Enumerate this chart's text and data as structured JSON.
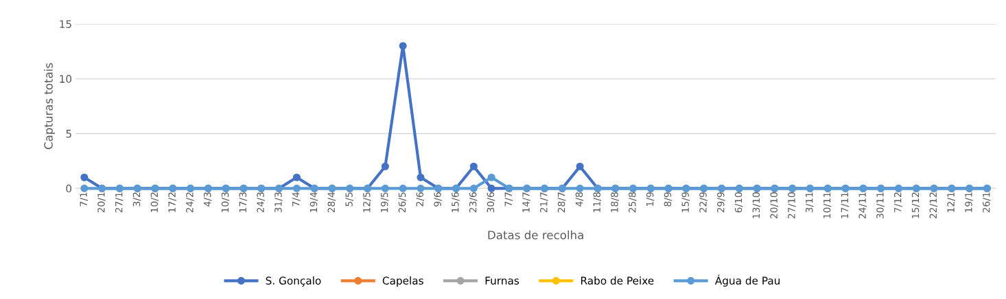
{
  "chart_data": {
    "type": "line",
    "xlabel": "Datas de recolha",
    "ylabel": "Capturas totais",
    "categories": [
      "7/1",
      "20/1",
      "27/1",
      "3/2",
      "10/2",
      "17/2",
      "24/2",
      "4/3",
      "10/3",
      "17/3",
      "24/3",
      "31/3",
      "7/4",
      "19/4",
      "28/4",
      "5/5",
      "12/5",
      "19/5",
      "26/5",
      "2/6",
      "9/6",
      "15/6",
      "23/6",
      "30/6",
      "7/7",
      "14/7",
      "21/7",
      "28/7",
      "4/8",
      "11/8",
      "18/8",
      "25/8",
      "1/9",
      "8/9",
      "15/9",
      "22/9",
      "29/9",
      "6/10",
      "13/10",
      "20/10",
      "27/10",
      "3/11",
      "10/11",
      "17/11",
      "24/11",
      "30/11",
      "7/12",
      "15/12",
      "22/12",
      "12/1",
      "19/1",
      "26/1"
    ],
    "series": [
      {
        "name": "S. Gonçalo",
        "color": "#4472c4",
        "values": [
          1,
          0,
          0,
          0,
          0,
          0,
          0,
          0,
          0,
          0,
          0,
          0,
          1,
          0,
          0,
          0,
          0,
          2,
          13,
          1,
          0,
          0,
          2,
          0,
          0,
          0,
          0,
          0,
          2,
          0,
          0,
          0,
          0,
          0,
          0,
          0,
          0,
          0,
          0,
          0,
          0,
          0,
          0,
          0,
          0,
          0,
          0,
          0,
          0,
          0,
          0,
          0
        ]
      },
      {
        "name": "Capelas",
        "color": "#ed7d31",
        "values": [
          null,
          null,
          null,
          null,
          null,
          null,
          null,
          null,
          null,
          null,
          null,
          null,
          null,
          null,
          null,
          null,
          null,
          null,
          null,
          null,
          null,
          null,
          null,
          null,
          null,
          null,
          null,
          null,
          null,
          null,
          null,
          null,
          null,
          null,
          null,
          null,
          null,
          null,
          null,
          null,
          null,
          null,
          null,
          null,
          null,
          null,
          null,
          null,
          null,
          null,
          null,
          null
        ]
      },
      {
        "name": "Furnas",
        "color": "#a5a5a5",
        "values": [
          null,
          null,
          null,
          null,
          null,
          null,
          null,
          null,
          null,
          null,
          null,
          null,
          null,
          null,
          null,
          null,
          null,
          null,
          null,
          null,
          null,
          null,
          null,
          null,
          null,
          null,
          null,
          null,
          null,
          null,
          null,
          null,
          null,
          null,
          null,
          null,
          null,
          null,
          null,
          null,
          null,
          null,
          null,
          null,
          null,
          null,
          null,
          null,
          null,
          null,
          null,
          null
        ]
      },
      {
        "name": "Rabo de Peixe",
        "color": "#ffc000",
        "values": [
          null,
          null,
          null,
          null,
          null,
          null,
          null,
          null,
          null,
          null,
          null,
          null,
          null,
          null,
          null,
          null,
          null,
          null,
          null,
          null,
          null,
          null,
          null,
          null,
          null,
          null,
          null,
          null,
          null,
          null,
          null,
          null,
          null,
          null,
          null,
          null,
          null,
          null,
          null,
          null,
          null,
          null,
          null,
          null,
          null,
          null,
          null,
          null,
          null,
          null,
          null,
          null
        ]
      },
      {
        "name": "Água de Pau",
        "color": "#5b9bd5",
        "values": [
          0,
          0,
          0,
          0,
          0,
          0,
          0,
          0,
          0,
          0,
          0,
          0,
          0,
          0,
          0,
          0,
          0,
          0,
          0,
          0,
          0,
          0,
          0,
          1,
          0,
          0,
          0,
          0,
          0,
          0,
          0,
          0,
          0,
          0,
          0,
          0,
          0,
          0,
          0,
          0,
          0,
          0,
          0,
          0,
          0,
          0,
          0,
          0,
          0,
          0,
          0,
          0
        ]
      }
    ],
    "ylim": [
      0,
      15
    ],
    "yticks": [
      0,
      5,
      10,
      15
    ],
    "grid": "y",
    "legend": "bottom",
    "marker": "circle",
    "line_style": "solid"
  }
}
